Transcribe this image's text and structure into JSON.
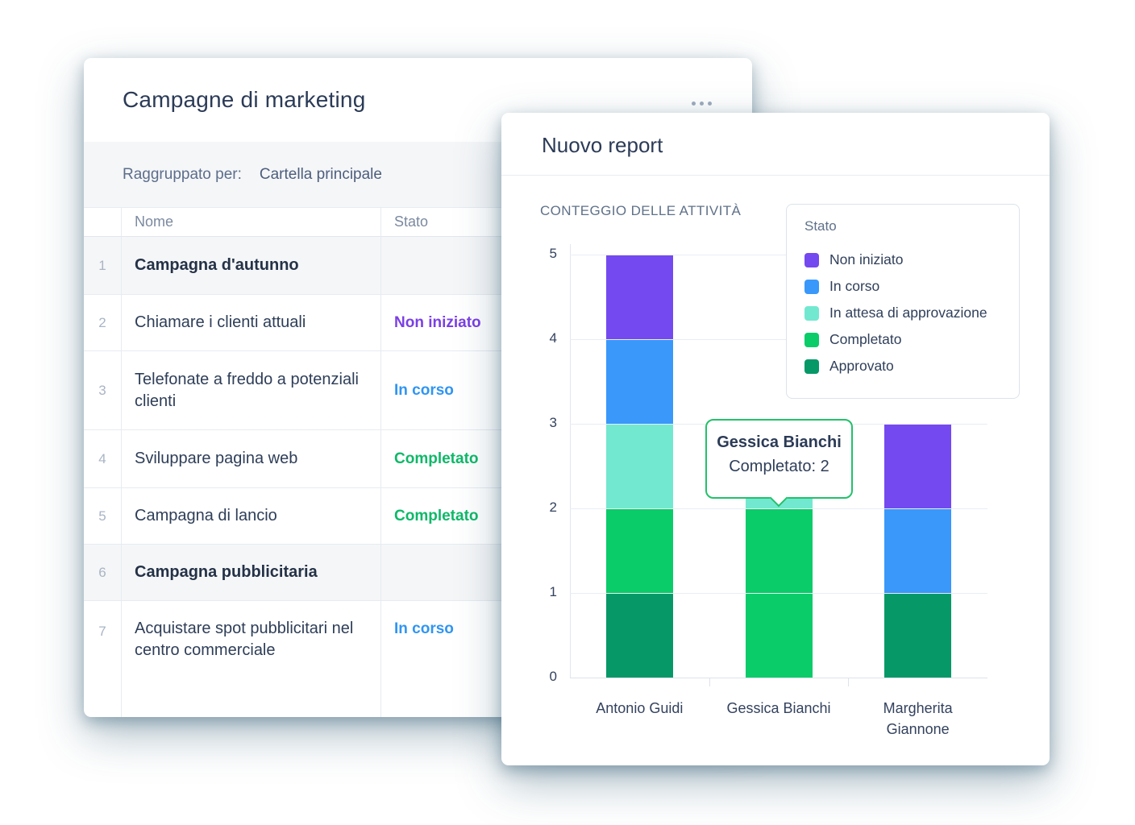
{
  "left_card": {
    "title": "Campagne di marketing",
    "group_by_label": "Raggruppato per:",
    "group_by_value": "Cartella principale",
    "table": {
      "columns": {
        "name": "Nome",
        "status": "Stato"
      },
      "rows": [
        {
          "num": "1",
          "name": "Campagna d'autunno",
          "status": "",
          "group": true
        },
        {
          "num": "2",
          "name": "Chiamare i clienti attuali",
          "status": "Non iniziato",
          "group": false
        },
        {
          "num": "3",
          "name": "Telefonate a freddo a potenziali clienti",
          "status": "In corso",
          "group": false
        },
        {
          "num": "4",
          "name": "Sviluppare pagina web",
          "status": "Completato",
          "group": false
        },
        {
          "num": "5",
          "name": "Campagna di lancio",
          "status": "Completato",
          "group": false
        },
        {
          "num": "6",
          "name": "Campagna pubblicitaria",
          "status": "",
          "group": true
        },
        {
          "num": "7",
          "name": "Acquistare spot pubblicitari nel centro commerciale",
          "status": "In corso",
          "group": false
        }
      ]
    },
    "status_colors": {
      "Non iniziato": "#7b3fe4",
      "In corso": "#3095f2",
      "Completato": "#0fb869"
    }
  },
  "right_card": {
    "title": "Nuovo report"
  },
  "chart_data": {
    "type": "bar",
    "stacked": true,
    "title": "CONTEGGIO DELLE ATTIVITÀ",
    "categories": [
      "Antonio Guidi",
      "Gessica Bianchi",
      "Margherita Giannone"
    ],
    "series": [
      {
        "name": "Non iniziato",
        "color": "#7449f0",
        "values": [
          1,
          0,
          1
        ]
      },
      {
        "name": "In corso",
        "color": "#3998fa",
        "values": [
          1,
          0,
          1
        ]
      },
      {
        "name": "In attesa di approvazione",
        "color": "#72e8d0",
        "values": [
          1,
          1,
          0
        ]
      },
      {
        "name": "Completato",
        "color": "#0acc69",
        "values": [
          1,
          2,
          0
        ]
      },
      {
        "name": "Approvato",
        "color": "#079867",
        "values": [
          1,
          0,
          1
        ]
      }
    ],
    "ylim": [
      0,
      5
    ],
    "yticks": [
      0,
      1,
      2,
      3,
      4,
      5
    ],
    "grid": true,
    "legend_title": "Stato",
    "legend_position": "top-right",
    "tooltip": {
      "category": "Gessica Bianchi",
      "series": "Completato",
      "value": 2,
      "text": "Completato: 2",
      "border_color": "#23c16b"
    },
    "colors_note": {
      "gridline": "#e9edf3",
      "axis_text": "#33425e"
    }
  }
}
